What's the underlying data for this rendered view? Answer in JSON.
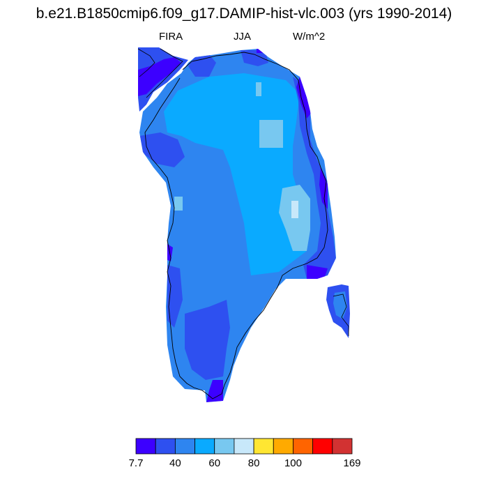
{
  "title": "b.e21.B1850cmip6.f09_g17.DAMIP-hist-vlc.003 (yrs 1990-2014)",
  "variable": "FIRA",
  "season": "JJA",
  "units": "W/m^2",
  "colorbar": {
    "colors": [
      "#3c00ff",
      "#2e50f0",
      "#2e85f0",
      "#0aaaff",
      "#78c8f0",
      "#c8e8fa",
      "#ffe632",
      "#ffaa00",
      "#ff6400",
      "#ff0000",
      "#d23232"
    ],
    "tick_labels": [
      "7.7",
      "40",
      "60",
      "80",
      "100",
      "169"
    ]
  }
}
